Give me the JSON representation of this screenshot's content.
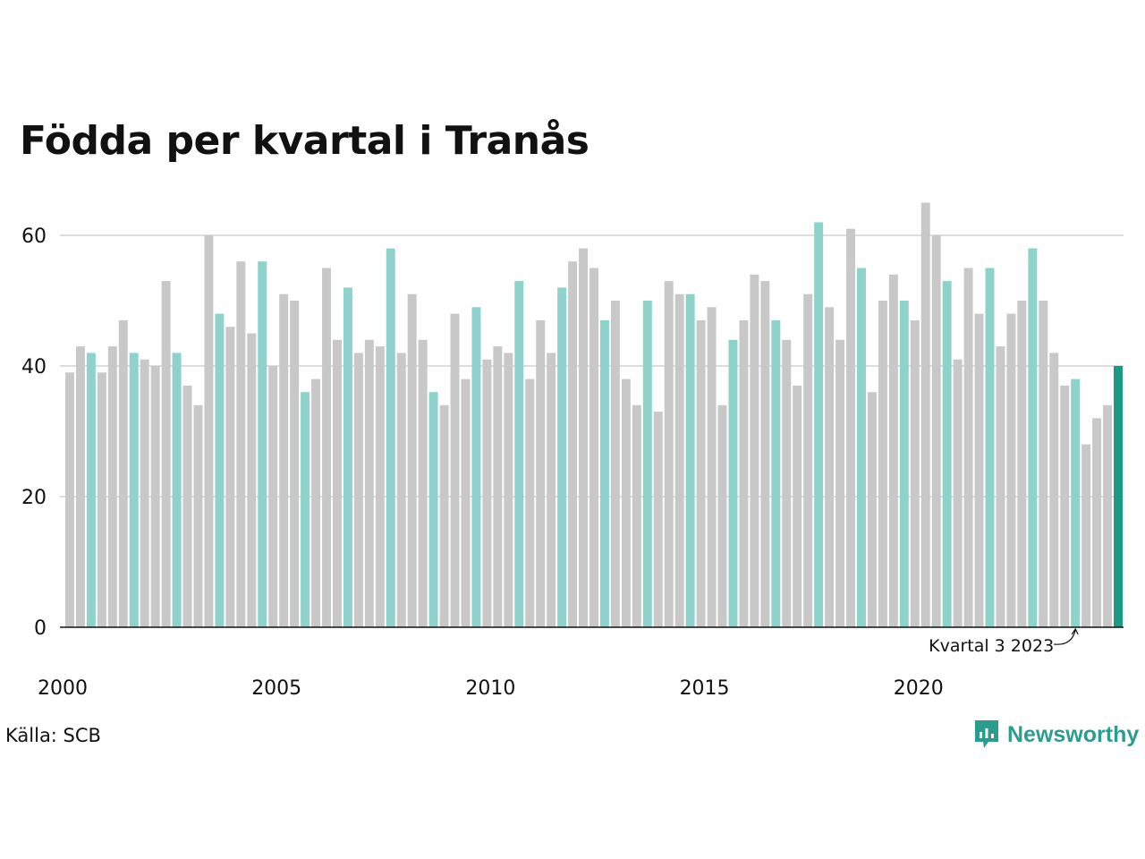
{
  "title": "Födda per kvartal i Tranås",
  "source": "Källa: SCB",
  "brand": {
    "name": "Newsworthy",
    "icon": "newsworthy-logo-icon",
    "color": "#2a9d8f"
  },
  "colors": {
    "default": "#c8c8c8",
    "highlight": "#8dd3cb",
    "latest": "#1a9985",
    "grid": "#dddddd",
    "axis": "#111111"
  },
  "chart_data": {
    "type": "bar",
    "title": "Födda per kvartal i Tranås",
    "xlabel": "",
    "ylabel": "",
    "ylim": [
      0,
      65
    ],
    "yticks": [
      0,
      20,
      40,
      60
    ],
    "xtick_labels": [
      "2000",
      "2005",
      "2010",
      "2015",
      "2020"
    ],
    "grid": "horizontal",
    "highlight_quarter": 3,
    "start": {
      "year": 2000,
      "quarter": 1
    },
    "values": [
      39,
      43,
      42,
      39,
      43,
      47,
      42,
      41,
      40,
      53,
      42,
      37,
      34,
      60,
      48,
      46,
      56,
      45,
      56,
      40,
      51,
      50,
      36,
      38,
      55,
      44,
      52,
      42,
      44,
      43,
      58,
      42,
      51,
      44,
      36,
      34,
      48,
      38,
      49,
      41,
      43,
      42,
      53,
      38,
      47,
      42,
      52,
      56,
      58,
      55,
      47,
      50,
      38,
      34,
      50,
      33,
      53,
      51,
      51,
      47,
      49,
      34,
      44,
      47,
      54,
      53,
      47,
      44,
      37,
      51,
      62,
      49,
      44,
      61,
      55,
      36,
      50,
      54,
      50,
      47,
      65,
      60,
      53,
      41,
      55,
      48,
      55,
      43,
      48,
      50,
      58,
      50,
      42,
      37,
      38,
      28,
      32,
      34,
      40
    ],
    "annotation": {
      "text": "Kvartal 3 2023",
      "year": 2023,
      "quarter": 3
    }
  }
}
